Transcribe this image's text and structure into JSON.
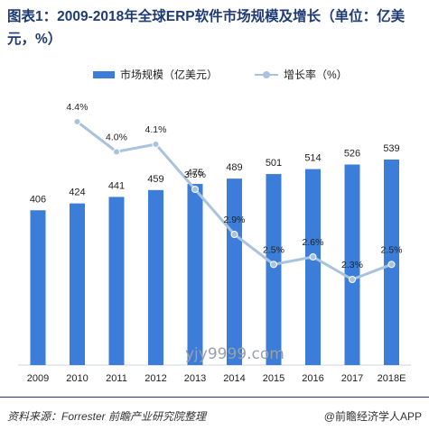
{
  "title": "图表1：2009-2018年全球ERP软件市场规模及增长（单位：亿美元，%）",
  "legend": {
    "bar_label": "市场规模（亿美元）",
    "line_label": "增长率（%）"
  },
  "watermark": "yjy9999.com",
  "source": "资料来源：Forrester 前瞻产业研究院整理",
  "brand": "@前瞻经济学人APP",
  "colors": {
    "bar": "#3b7dd8",
    "line": "#a9c3de",
    "title": "#1f3b73"
  },
  "chart_data": {
    "type": "bar",
    "categories": [
      "2009",
      "2010",
      "2011",
      "2012",
      "2013",
      "2014",
      "2015",
      "2016",
      "2017",
      "2018E"
    ],
    "series": [
      {
        "name": "市场规模（亿美元）",
        "type": "bar",
        "values": [
          406,
          424,
          441,
          459,
          475,
          489,
          501,
          514,
          526,
          539
        ],
        "labels": [
          "406",
          "424",
          "441",
          "459",
          "475",
          "489",
          "501",
          "514",
          "526",
          "539"
        ]
      },
      {
        "name": "增长率（%）",
        "type": "line",
        "values": [
          null,
          4.4,
          4.0,
          4.1,
          3.5,
          2.9,
          2.5,
          2.6,
          2.3,
          2.5
        ],
        "labels": [
          "",
          "4.4%",
          "4.0%",
          "4.1%",
          "3.5%",
          "2.9%",
          "2.5%",
          "2.6%",
          "2.3%",
          "2.5%"
        ]
      }
    ],
    "grid": false
  }
}
